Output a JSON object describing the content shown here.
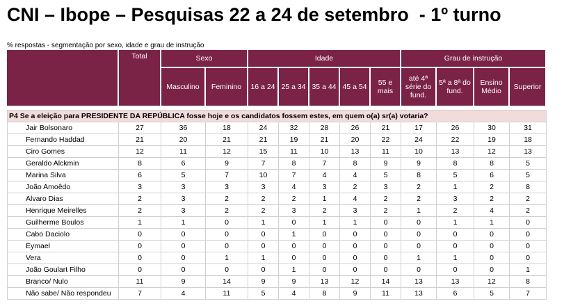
{
  "header": {
    "title": "CNI – Ibope – Pesquisas 22 a 24 de setembro  - 1º turno",
    "subtitle": "% respostas - segmentação por sexo, idade e grau de instrução"
  },
  "table": {
    "total": "Total",
    "groups": [
      {
        "label": "Sexo",
        "columns": [
          "Masculino",
          "Feminino"
        ]
      },
      {
        "label": "Idade",
        "columns": [
          "16 a 24",
          "25 a 34",
          "35 a 44",
          "45 a 54",
          "55 e mais"
        ]
      },
      {
        "label": "Grau de instrução",
        "columns": [
          "até 4ª série do fund.",
          "5ª a 8ª do fund.",
          "Ensino Médio",
          "Superior"
        ]
      }
    ],
    "question": "P4 Se a eleição para PRESIDENTE DA REPÚBLICA fosse hoje e os candidatos fossem estes, em quem o(a) sr(a) votaria?",
    "rows": [
      {
        "label": "Jair Bolsonaro",
        "values": [
          27,
          36,
          18,
          24,
          32,
          28,
          26,
          21,
          17,
          26,
          30,
          31
        ]
      },
      {
        "label": "Fernando Haddad",
        "values": [
          21,
          20,
          21,
          21,
          19,
          21,
          20,
          22,
          24,
          22,
          19,
          18
        ]
      },
      {
        "label": "Ciro Gomes",
        "values": [
          12,
          11,
          12,
          15,
          11,
          10,
          13,
          11,
          10,
          13,
          12,
          13
        ]
      },
      {
        "label": "Geraldo Alckmin",
        "values": [
          8,
          6,
          9,
          7,
          8,
          7,
          8,
          9,
          9,
          8,
          8,
          5
        ]
      },
      {
        "label": "Marina Silva",
        "values": [
          6,
          5,
          7,
          10,
          7,
          4,
          4,
          5,
          8,
          5,
          6,
          5
        ]
      },
      {
        "label": "João Amoêdo",
        "values": [
          3,
          3,
          3,
          3,
          4,
          3,
          2,
          3,
          2,
          1,
          2,
          8
        ]
      },
      {
        "label": "Alvaro Dias",
        "values": [
          2,
          3,
          2,
          2,
          2,
          1,
          4,
          2,
          2,
          3,
          2,
          2
        ]
      },
      {
        "label": "Henrique Meirelles",
        "values": [
          2,
          3,
          2,
          2,
          3,
          2,
          3,
          2,
          1,
          2,
          4,
          2
        ]
      },
      {
        "label": "Guilherme Boulos",
        "values": [
          1,
          1,
          0,
          1,
          0,
          1,
          1,
          0,
          0,
          1,
          1,
          0
        ]
      },
      {
        "label": "Cabo Daciolo",
        "values": [
          0,
          0,
          0,
          0,
          1,
          0,
          0,
          0,
          0,
          0,
          0,
          0
        ]
      },
      {
        "label": "Eymael",
        "values": [
          0,
          0,
          0,
          0,
          0,
          0,
          0,
          0,
          0,
          0,
          0,
          0
        ]
      },
      {
        "label": "Vera",
        "values": [
          0,
          0,
          1,
          1,
          0,
          0,
          0,
          0,
          1,
          1,
          0,
          0
        ]
      },
      {
        "label": "João Goulart Filho",
        "values": [
          0,
          0,
          0,
          0,
          1,
          0,
          0,
          0,
          0,
          0,
          0,
          1
        ]
      },
      {
        "label": "Branco/ Nulo",
        "values": [
          11,
          9,
          14,
          9,
          9,
          13,
          12,
          14,
          13,
          13,
          12,
          8
        ]
      },
      {
        "label": "Não sabe/ Não respondeu",
        "values": [
          7,
          4,
          11,
          5,
          4,
          8,
          9,
          11,
          13,
          6,
          5,
          7
        ]
      }
    ]
  }
}
